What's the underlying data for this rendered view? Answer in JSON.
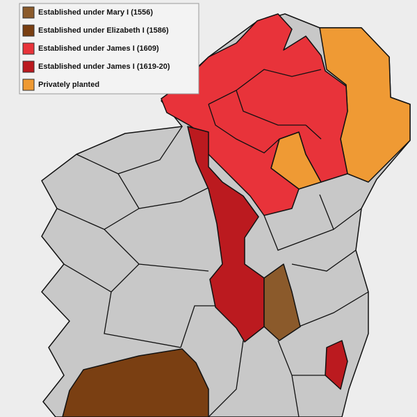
{
  "legend": [
    {
      "label": "Established under Mary I  (1556)",
      "color": "#8b5a2b"
    },
    {
      "label": "Established under Elizabeth I  (1586)",
      "color": "#7a3f12"
    },
    {
      "label": "Established under James I  (1609)",
      "color": "#e8333a"
    },
    {
      "label": "Established under James I  (1619-20)",
      "color": "#bb1a1f"
    },
    {
      "label": "Privately planted",
      "color": "#ef9a34"
    }
  ]
}
